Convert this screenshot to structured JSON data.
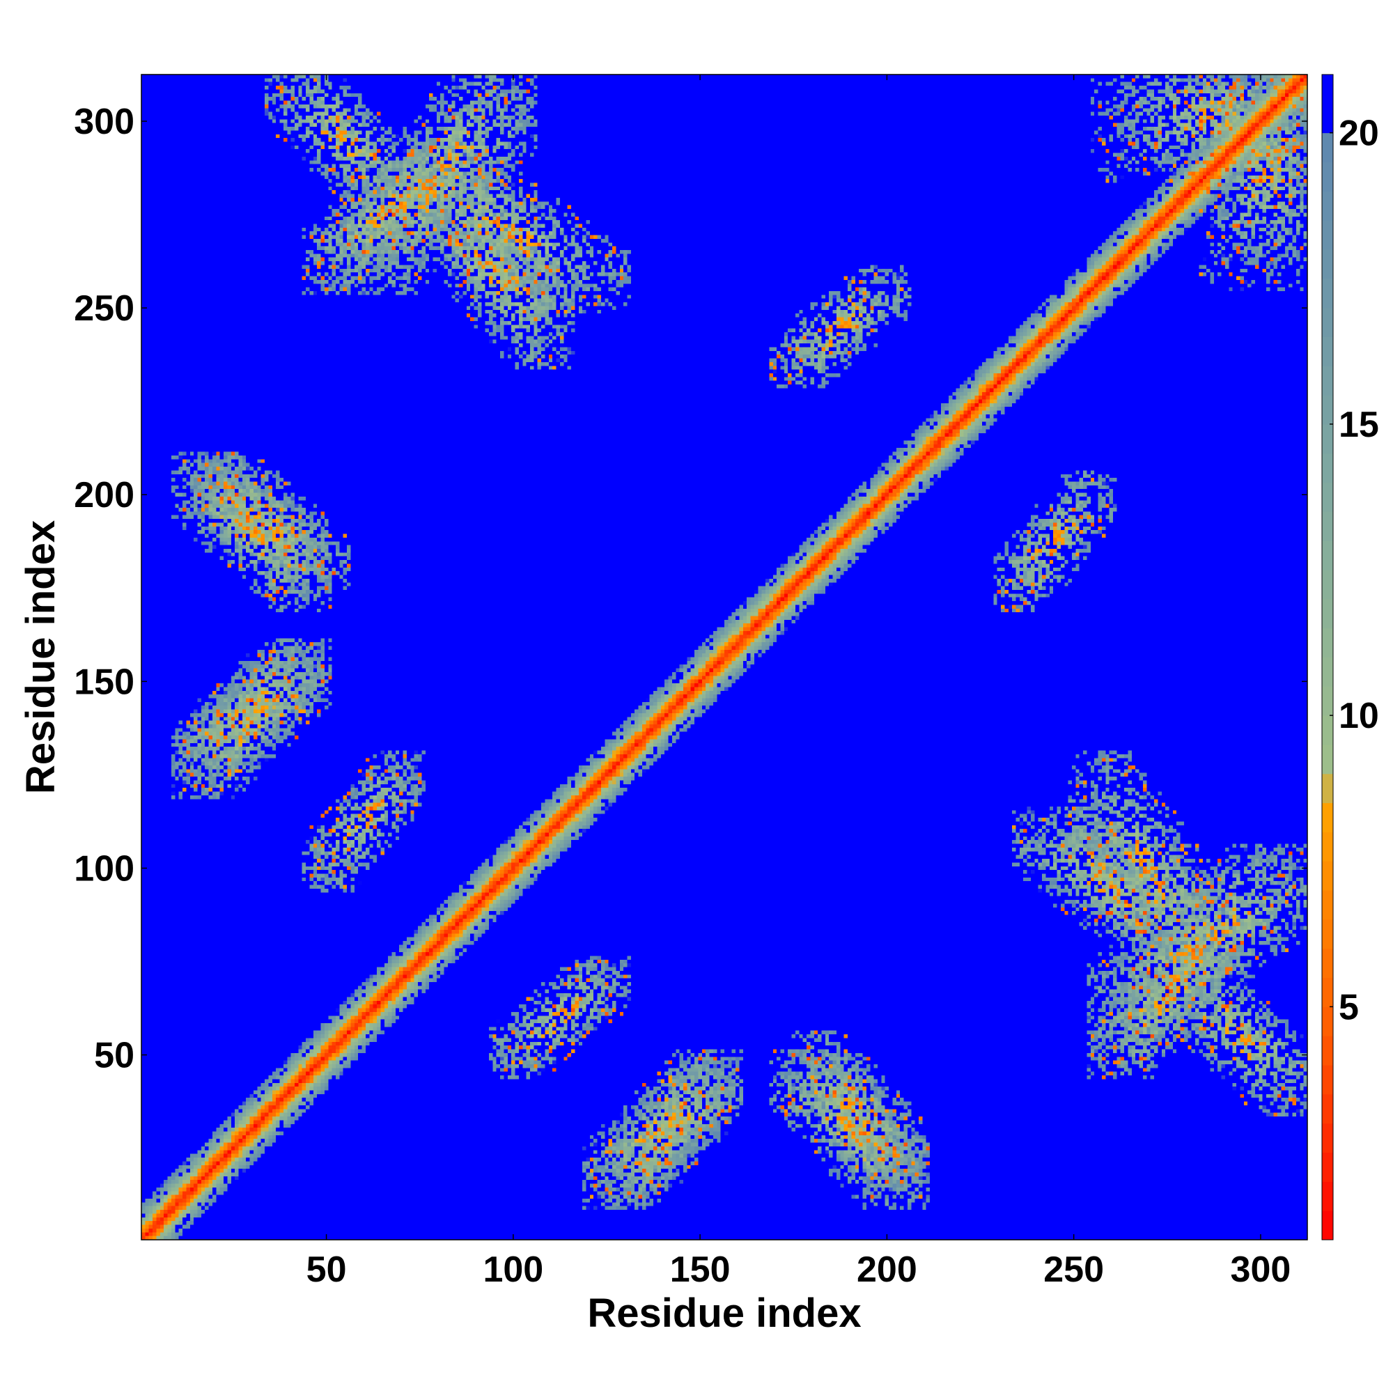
{
  "chart_data": {
    "type": "heatmap",
    "title": "",
    "xlabel": "Residue index",
    "ylabel": "Residue index",
    "n_residues": 312,
    "xlim": [
      1,
      312
    ],
    "ylim": [
      1,
      312
    ],
    "xticks": [
      50,
      100,
      150,
      200,
      250,
      300
    ],
    "yticks": [
      50,
      100,
      150,
      200,
      250,
      300
    ],
    "colorbar": {
      "ticks": [
        5,
        10,
        15,
        20
      ],
      "range": [
        1,
        21
      ],
      "colors": [
        "#ff0000",
        "#ff5a00",
        "#ffa500",
        "#9fbf8a",
        "#7fa8a0",
        "#5f88b0",
        "#0000ff"
      ],
      "color_stops": [
        1,
        4.5,
        8.5,
        9,
        14,
        20,
        20.5
      ]
    },
    "cutoff_value": 20,
    "background_value": 21,
    "contact_regions": [
      {
        "x": [
          1,
          312
        ],
        "y": [
          1,
          312
        ],
        "type": "diagonal"
      },
      {
        "x": [
          60,
          100
        ],
        "y": [
          260,
          310
        ],
        "type": "antiparallel"
      },
      {
        "x": [
          80,
          110
        ],
        "y": [
          240,
          280
        ],
        "type": "parallel"
      },
      {
        "x": [
          20,
          50
        ],
        "y": [
          180,
          205
        ],
        "type": "parallel"
      },
      {
        "x": [
          15,
          45
        ],
        "y": [
          130,
          155
        ],
        "type": "antiparallel"
      },
      {
        "x": [
          50,
          70
        ],
        "y": [
          100,
          125
        ],
        "type": "antiparallel"
      },
      {
        "x": [
          125,
          155
        ],
        "y": [
          15,
          45
        ],
        "type": "antiparallel"
      },
      {
        "x": [
          175,
          205
        ],
        "y": [
          15,
          45
        ],
        "type": "parallel"
      },
      {
        "x": [
          255,
          285
        ],
        "y": [
          75,
          125
        ],
        "type": "parallel"
      },
      {
        "x": [
          260,
          290
        ],
        "y": [
          50,
          80
        ],
        "type": "antiparallel"
      },
      {
        "x": [
          235,
          255
        ],
        "y": [
          175,
          200
        ],
        "type": "antiparallel"
      },
      {
        "x": [
          280,
          310
        ],
        "y": [
          40,
          70
        ],
        "type": "parallel"
      },
      {
        "x": [
          290,
          312
        ],
        "y": [
          260,
          312
        ],
        "type": "block"
      }
    ]
  }
}
